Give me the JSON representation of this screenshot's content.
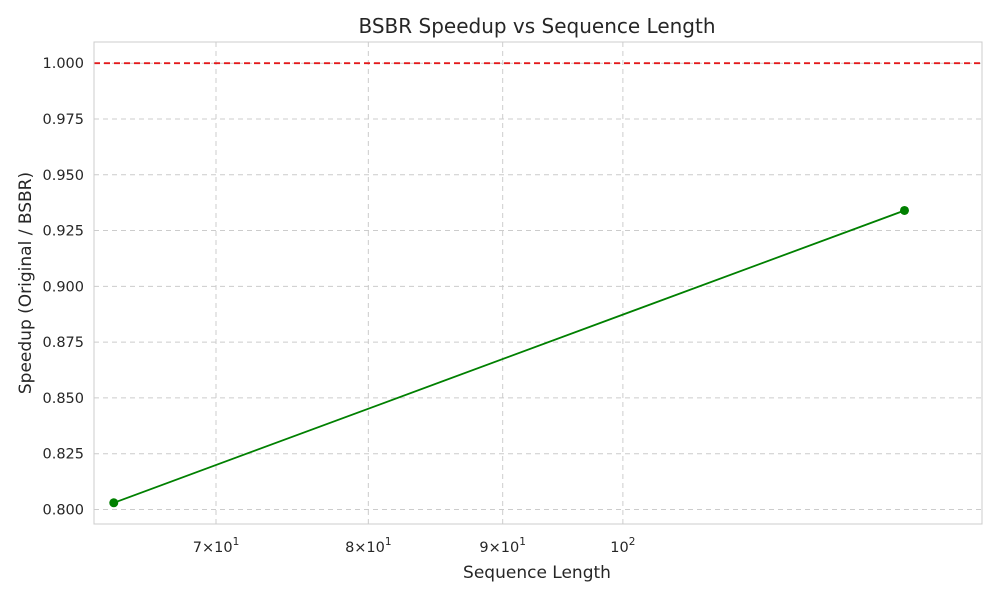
{
  "chart_data": {
    "type": "line",
    "title": "BSBR Speedup vs Sequence Length",
    "xlabel": "Sequence Length",
    "ylabel": "Speedup (Original / BSBR)",
    "xscale": "log",
    "xlim": [
      62.9,
      137
    ],
    "ylim": [
      0.7935,
      1.0095
    ],
    "grid": true,
    "x_ticks": [
      {
        "value": 70,
        "mantissa": "7",
        "base": "10",
        "exponent": "1"
      },
      {
        "value": 80,
        "mantissa": "8",
        "base": "10",
        "exponent": "1"
      },
      {
        "value": 90,
        "mantissa": "9",
        "base": "10",
        "exponent": "1"
      },
      {
        "value": 100,
        "mantissa": "",
        "base": "10",
        "exponent": "2"
      }
    ],
    "y_ticks": [
      "0.800",
      "0.825",
      "0.850",
      "0.875",
      "0.900",
      "0.925",
      "0.950",
      "0.975",
      "1.000"
    ],
    "series": [
      {
        "x": [
          64,
          128
        ],
        "y": [
          0.803,
          0.934
        ],
        "color": "#008000",
        "marker": "circle"
      }
    ],
    "reference_lines": [
      {
        "y": 1.0,
        "color": "#e41a1c",
        "style": "dashed"
      }
    ]
  }
}
